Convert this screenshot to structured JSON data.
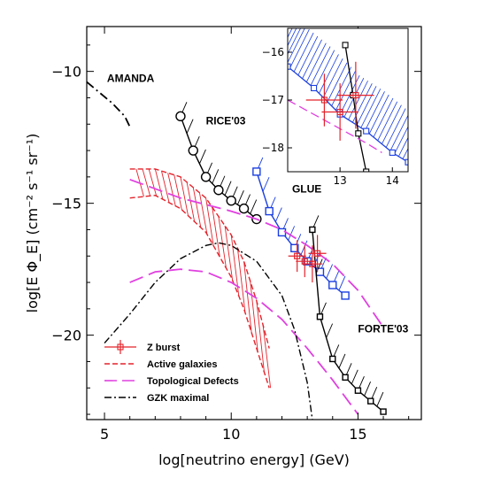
{
  "chart_data": {
    "type": "line",
    "xlabel": "log[neutrino energy] (GeV)",
    "ylabel": "log[E Φ_E] (cm⁻² s⁻¹ sr⁻¹)",
    "xlim": [
      4.3,
      17.5
    ],
    "ylim": [
      -23.2,
      -8.3
    ],
    "xticks": [
      5,
      10,
      15
    ],
    "yticks": [
      -10,
      -15,
      -20
    ],
    "annotations": [
      {
        "text": "AMANDA",
        "x": 5.1,
        "y": -10.4
      },
      {
        "text": "RICE'03",
        "x": 9.0,
        "y": -12.0
      },
      {
        "text": "GLUE",
        "x": 12.4,
        "y": -14.6
      },
      {
        "text": "FORTE'03",
        "x": 15.0,
        "y": -19.9
      }
    ],
    "legend": [
      {
        "label": "Z burst",
        "style": "red-errorbar-square",
        "color": "#e4232b"
      },
      {
        "label": "Active galaxies",
        "style": "red-dashed",
        "color": "#e4232b"
      },
      {
        "label": "Topological Defects",
        "style": "magenta-long-dash",
        "color": "#e040e0"
      },
      {
        "label": "GZK maximal",
        "style": "black-dash-dot",
        "color": "#000000"
      }
    ],
    "legend_position": "bottom-left",
    "series": [
      {
        "name": "AMANDA",
        "style": "black-dash-dot-limit",
        "color": "#000000",
        "x": [
          4.3,
          4.8,
          5.3,
          5.8,
          6.0
        ],
        "y": [
          -10.4,
          -10.8,
          -11.2,
          -11.7,
          -12.1
        ]
      },
      {
        "name": "RICE'03",
        "style": "black-line-circles-hatched",
        "color": "#000000",
        "x": [
          8.0,
          8.5,
          9.0,
          9.5,
          10.0,
          10.5,
          11.0
        ],
        "y": [
          -11.7,
          -13.0,
          -14.0,
          -14.5,
          -14.9,
          -15.2,
          -15.6
        ]
      },
      {
        "name": "GLUE",
        "style": "blue-line-squares-hatched",
        "color": "#1a3fe0",
        "x": [
          11.0,
          11.5,
          12.0,
          12.5,
          13.0,
          13.5,
          14.0,
          14.5
        ],
        "y": [
          -13.8,
          -15.3,
          -16.1,
          -16.7,
          -17.2,
          -17.6,
          -18.1,
          -18.5
        ]
      },
      {
        "name": "FORTE'03",
        "style": "black-line-squares-hatched",
        "color": "#000000",
        "x": [
          13.2,
          13.5,
          14.0,
          14.5,
          15.0,
          15.5,
          16.0
        ],
        "y": [
          -16.0,
          -19.3,
          -20.9,
          -21.6,
          -22.1,
          -22.5,
          -22.9
        ]
      },
      {
        "name": "Topological Defects",
        "style": "magenta-long-dash",
        "color": "#e040e0",
        "x": [
          6.0,
          8.0,
          10.0,
          11.0,
          12.0,
          13.0,
          14.0,
          15.0,
          16.0
        ],
        "y": [
          -14.1,
          -14.8,
          -15.3,
          -15.6,
          -16.0,
          -16.6,
          -17.3,
          -18.3,
          -19.7
        ]
      },
      {
        "name": "Topological Defects",
        "style": "magenta-long-dash",
        "color": "#e040e0",
        "x": [
          6.0,
          7.0,
          8.0,
          9.0,
          10.0,
          11.0,
          12.0,
          13.0,
          14.0,
          15.0
        ],
        "y": [
          -18.0,
          -17.6,
          -17.5,
          -17.6,
          -18.0,
          -18.6,
          -19.4,
          -20.5,
          -21.7,
          -23.0
        ]
      },
      {
        "name": "GZK maximal",
        "style": "black-dash-dot",
        "color": "#000000",
        "x": [
          5.0,
          6.0,
          7.0,
          8.0,
          9.0,
          9.5,
          10.0,
          11.0,
          12.0,
          12.5,
          13.0,
          13.2
        ],
        "y": [
          -20.3,
          -19.2,
          -18.0,
          -17.1,
          -16.6,
          -16.5,
          -16.6,
          -17.2,
          -18.5,
          -19.8,
          -21.8,
          -23.2
        ]
      }
    ],
    "active_galaxies": {
      "upper": {
        "x": [
          6.0,
          7.0,
          8.0,
          9.0,
          10.0,
          10.5,
          11.0,
          11.5
        ],
        "y": [
          -13.7,
          -13.7,
          -14.0,
          -14.8,
          -16.2,
          -17.2,
          -18.7,
          -20.5
        ]
      },
      "lower": {
        "x": [
          6.0,
          7.0,
          8.0,
          9.0,
          10.0,
          10.5,
          11.0,
          11.5
        ],
        "y": [
          -14.8,
          -14.7,
          -15.2,
          -16.1,
          -17.8,
          -19.0,
          -20.5,
          -22.0
        ]
      }
    },
    "z_burst_points": [
      {
        "x": 12.6,
        "y": -17.0,
        "xerr": 0.35,
        "yerr": 0.6
      },
      {
        "x": 12.9,
        "y": -17.2,
        "xerr": 0.35,
        "yerr": 0.6
      },
      {
        "x": 13.2,
        "y": -17.3,
        "xerr": 0.4,
        "yerr": 0.7
      },
      {
        "x": 13.4,
        "y": -16.9,
        "xerr": 0.35,
        "yerr": 0.7
      }
    ],
    "inset": {
      "xlim": [
        12.0,
        14.3
      ],
      "ylim": [
        -18.5,
        -15.5
      ],
      "xticks": [
        13,
        14
      ],
      "yticks": [
        -16,
        -17,
        -18
      ],
      "series": [
        {
          "name": "GLUE",
          "x": [
            12.0,
            12.5,
            13.0,
            13.5,
            14.0,
            14.3
          ],
          "y": [
            -16.3,
            -16.75,
            -17.3,
            -17.65,
            -18.1,
            -18.3
          ]
        },
        {
          "name": "FORTE'03",
          "x": [
            13.1,
            13.25,
            13.35,
            13.5
          ],
          "y": [
            -15.85,
            -16.9,
            -17.7,
            -18.5
          ]
        },
        {
          "name": "Topological Defects",
          "x": [
            12.0,
            12.5,
            13.0,
            13.5,
            13.8
          ],
          "y": [
            -17.0,
            -17.3,
            -17.6,
            -17.9,
            -18.1
          ]
        }
      ],
      "z_burst_points": [
        {
          "x": 12.7,
          "y": -17.0,
          "xerr": 0.35,
          "yerr": 0.55
        },
        {
          "x": 13.0,
          "y": -17.25,
          "xerr": 0.35,
          "yerr": 0.6
        },
        {
          "x": 13.3,
          "y": -16.9,
          "xerr": 0.35,
          "yerr": 0.7
        }
      ]
    }
  }
}
